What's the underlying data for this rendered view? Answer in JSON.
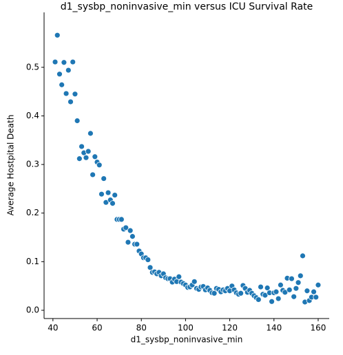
{
  "chart_data": {
    "type": "scatter",
    "title": "d1_sysbp_noninvasive_min versus ICU Survival Rate",
    "x_label": "d1_sysbp_noninvasive_min",
    "y_label": "Average Hostpital Death",
    "color": "#1f77b4",
    "xlim": [
      36,
      165
    ],
    "ylim": [
      -0.017,
      0.613
    ],
    "xticks": [
      40,
      60,
      80,
      100,
      120,
      140,
      160
    ],
    "yticks": [
      {
        "value": 0,
        "label": "0.0"
      },
      0.1,
      0.2,
      0.3,
      0.4,
      0.5
    ],
    "x": [
      41,
      42,
      43,
      44,
      45,
      46,
      47,
      48,
      49,
      50,
      51,
      52,
      53,
      54,
      55,
      56,
      57,
      58,
      59,
      60,
      61,
      62,
      63,
      64,
      65,
      66,
      67,
      68,
      69,
      70,
      71,
      72,
      73,
      74,
      75,
      76,
      77,
      78,
      79,
      80,
      81,
      82,
      83,
      84,
      85,
      86,
      87,
      88,
      89,
      90,
      91,
      92,
      93,
      94,
      95,
      96,
      97,
      98,
      99,
      100,
      101,
      102,
      103,
      104,
      105,
      106,
      107,
      108,
      109,
      110,
      111,
      112,
      113,
      114,
      115,
      116,
      117,
      118,
      119,
      120,
      121,
      122,
      123,
      124,
      125,
      126,
      127,
      128,
      129,
      130,
      131,
      132,
      133,
      134,
      135,
      136,
      137,
      138,
      139,
      140,
      141,
      142,
      143,
      144,
      145,
      146,
      147,
      148,
      149,
      150,
      151,
      152,
      153,
      154,
      155,
      156,
      157,
      158,
      159,
      160
    ],
    "y": [
      0.511,
      0.566,
      0.486,
      0.464,
      0.51,
      0.446,
      0.494,
      0.429,
      0.511,
      0.445,
      0.39,
      0.312,
      0.337,
      0.324,
      0.314,
      0.327,
      0.364,
      0.279,
      0.316,
      0.305,
      0.299,
      0.239,
      0.271,
      0.222,
      0.242,
      0.227,
      0.22,
      0.237,
      0.187,
      0.187,
      0.187,
      0.167,
      0.17,
      0.14,
      0.164,
      0.152,
      0.136,
      0.136,
      0.122,
      0.116,
      0.108,
      0.108,
      0.104,
      0.088,
      0.078,
      0.079,
      0.075,
      0.078,
      0.071,
      0.075,
      0.067,
      0.065,
      0.065,
      0.058,
      0.064,
      0.059,
      0.069,
      0.058,
      0.055,
      0.052,
      0.047,
      0.048,
      0.052,
      0.059,
      0.045,
      0.043,
      0.048,
      0.049,
      0.042,
      0.046,
      0.041,
      0.036,
      0.035,
      0.045,
      0.043,
      0.038,
      0.042,
      0.04,
      0.045,
      0.04,
      0.05,
      0.042,
      0.036,
      0.033,
      0.035,
      0.051,
      0.045,
      0.037,
      0.041,
      0.035,
      0.03,
      0.026,
      0.022,
      0.048,
      0.033,
      0.031,
      0.046,
      0.036,
      0.018,
      0.036,
      0.038,
      0.024,
      0.052,
      0.041,
      0.037,
      0.066,
      0.042,
      0.065,
      0.028,
      0.045,
      0.057,
      0.071,
      0.112,
      0.017,
      0.04,
      0.02,
      0.027,
      0.038,
      0.027,
      0.052
    ]
  }
}
